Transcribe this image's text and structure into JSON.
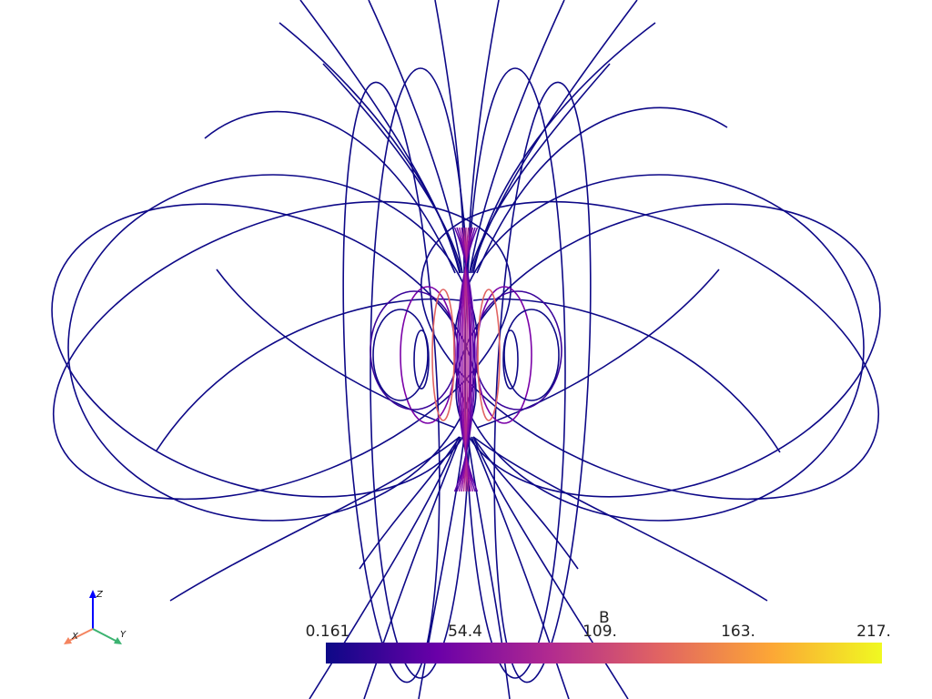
{
  "scalar_bar": {
    "title": "B",
    "tick_labels": [
      "0.161",
      "54.4",
      "109.",
      "163.",
      "217."
    ],
    "range": [
      0.161,
      217
    ],
    "colormap": "plasma",
    "colors": [
      "#0d0887",
      "#6a00a8",
      "#b12a90",
      "#e16462",
      "#fca636",
      "#f0f921"
    ]
  },
  "orientation_axes": {
    "labels": [
      "X",
      "Y",
      "Z"
    ],
    "colors": {
      "x": "#f4845f",
      "y": "#3cb371",
      "z": "#0000ff"
    }
  },
  "field_line_color": "#0d0887"
}
